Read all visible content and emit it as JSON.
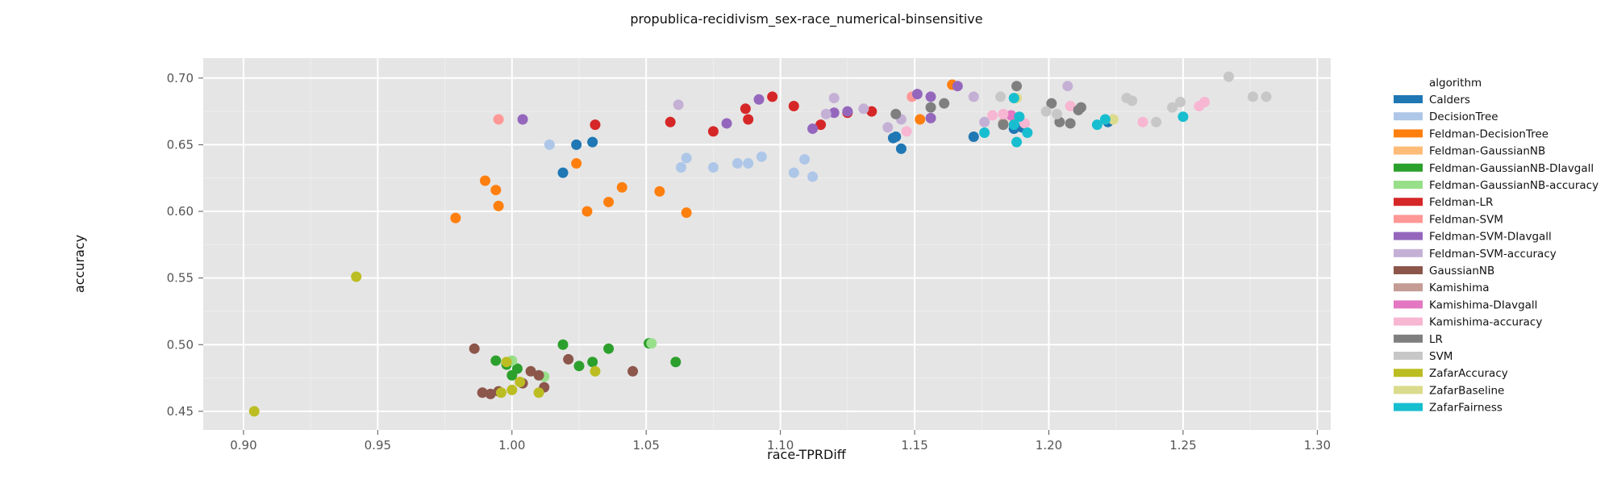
{
  "chart_data": {
    "type": "scatter",
    "title": "propublica-recidivism_sex-race_numerical-binsensitive",
    "xlabel": "race-TPRDiff",
    "ylabel": "accuracy",
    "xlim": [
      0.885,
      1.305
    ],
    "ylim": [
      0.436,
      0.715
    ],
    "xticks": [
      "0.90",
      "0.95",
      "1.00",
      "1.05",
      "1.10",
      "1.15",
      "1.20",
      "1.25",
      "1.30"
    ],
    "yticks": [
      "0.45",
      "0.50",
      "0.55",
      "0.60",
      "0.65",
      "0.70"
    ],
    "grid": true,
    "legend": {
      "title": "algorithm",
      "position": "right"
    },
    "series": [
      {
        "name": "Calders",
        "color": "#1f77b4",
        "points": [
          [
            1.019,
            0.629
          ],
          [
            1.024,
            0.65
          ],
          [
            1.03,
            0.652
          ],
          [
            1.142,
            0.655
          ],
          [
            1.143,
            0.656
          ],
          [
            1.145,
            0.647
          ],
          [
            1.172,
            0.656
          ],
          [
            1.187,
            0.662
          ],
          [
            1.19,
            0.663
          ],
          [
            1.222,
            0.667
          ]
        ]
      },
      {
        "name": "DecisionTree",
        "color": "#aec7e8",
        "points": [
          [
            1.014,
            0.65
          ],
          [
            1.063,
            0.633
          ],
          [
            1.065,
            0.64
          ],
          [
            1.075,
            0.633
          ],
          [
            1.084,
            0.636
          ],
          [
            1.088,
            0.636
          ],
          [
            1.093,
            0.641
          ],
          [
            1.105,
            0.629
          ],
          [
            1.109,
            0.639
          ],
          [
            1.112,
            0.626
          ]
        ]
      },
      {
        "name": "Feldman-DecisionTree",
        "color": "#ff7f0e",
        "points": [
          [
            0.979,
            0.595
          ],
          [
            0.99,
            0.623
          ],
          [
            0.994,
            0.616
          ],
          [
            0.995,
            0.604
          ],
          [
            1.024,
            0.636
          ],
          [
            1.028,
            0.6
          ],
          [
            1.036,
            0.607
          ],
          [
            1.041,
            0.618
          ],
          [
            1.055,
            0.615
          ],
          [
            1.065,
            0.599
          ],
          [
            1.152,
            0.669
          ],
          [
            1.164,
            0.695
          ]
        ]
      },
      {
        "name": "Feldman-GaussianNB",
        "color": "#ffbb78",
        "points": [
          [
            1.187,
            0.67
          ]
        ]
      },
      {
        "name": "Feldman-GaussianNB-DIavgall",
        "color": "#2ca02c",
        "points": [
          [
            0.994,
            0.488
          ],
          [
            0.998,
            0.485
          ],
          [
            1.0,
            0.477
          ],
          [
            1.002,
            0.482
          ],
          [
            1.019,
            0.5
          ],
          [
            1.025,
            0.484
          ],
          [
            1.03,
            0.487
          ],
          [
            1.036,
            0.497
          ],
          [
            1.051,
            0.501
          ],
          [
            1.061,
            0.487
          ]
        ]
      },
      {
        "name": "Feldman-GaussianNB-accuracy",
        "color": "#98df8a",
        "points": [
          [
            1.0,
            0.488
          ],
          [
            1.012,
            0.476
          ],
          [
            1.052,
            0.501
          ]
        ]
      },
      {
        "name": "Feldman-LR",
        "color": "#d62728",
        "points": [
          [
            1.031,
            0.665
          ],
          [
            1.059,
            0.667
          ],
          [
            1.075,
            0.66
          ],
          [
            1.087,
            0.677
          ],
          [
            1.088,
            0.669
          ],
          [
            1.097,
            0.686
          ],
          [
            1.105,
            0.679
          ],
          [
            1.115,
            0.665
          ],
          [
            1.125,
            0.674
          ],
          [
            1.134,
            0.675
          ]
        ]
      },
      {
        "name": "Feldman-SVM",
        "color": "#ff9896",
        "points": [
          [
            0.995,
            0.669
          ],
          [
            1.149,
            0.686
          ]
        ]
      },
      {
        "name": "Feldman-SVM-DIavgall",
        "color": "#9467bd",
        "points": [
          [
            1.004,
            0.669
          ],
          [
            1.08,
            0.666
          ],
          [
            1.092,
            0.684
          ],
          [
            1.112,
            0.662
          ],
          [
            1.12,
            0.674
          ],
          [
            1.125,
            0.675
          ],
          [
            1.151,
            0.688
          ],
          [
            1.156,
            0.686
          ],
          [
            1.156,
            0.67
          ],
          [
            1.166,
            0.694
          ]
        ]
      },
      {
        "name": "Feldman-SVM-accuracy",
        "color": "#c5b0d5",
        "points": [
          [
            1.062,
            0.68
          ],
          [
            1.117,
            0.673
          ],
          [
            1.12,
            0.685
          ],
          [
            1.131,
            0.677
          ],
          [
            1.14,
            0.663
          ],
          [
            1.145,
            0.669
          ],
          [
            1.172,
            0.686
          ],
          [
            1.176,
            0.667
          ],
          [
            1.207,
            0.694
          ]
        ]
      },
      {
        "name": "GaussianNB",
        "color": "#8c564b",
        "points": [
          [
            0.986,
            0.497
          ],
          [
            0.989,
            0.464
          ],
          [
            0.992,
            0.463
          ],
          [
            0.995,
            0.465
          ],
          [
            1.004,
            0.471
          ],
          [
            1.007,
            0.48
          ],
          [
            1.01,
            0.477
          ],
          [
            1.012,
            0.468
          ],
          [
            1.021,
            0.489
          ],
          [
            1.045,
            0.48
          ]
        ]
      },
      {
        "name": "Kamishima",
        "color": "#c49c94",
        "points": [
          [
            1.183,
            0.666
          ]
        ]
      },
      {
        "name": "Kamishima-DIavgall",
        "color": "#e377c2",
        "points": [
          [
            1.186,
            0.672
          ]
        ]
      },
      {
        "name": "Kamishima-accuracy",
        "color": "#f7b6d2",
        "points": [
          [
            1.147,
            0.66
          ],
          [
            1.179,
            0.672
          ],
          [
            1.183,
            0.673
          ],
          [
            1.191,
            0.666
          ],
          [
            1.208,
            0.679
          ],
          [
            1.235,
            0.667
          ],
          [
            1.256,
            0.679
          ],
          [
            1.258,
            0.682
          ]
        ]
      },
      {
        "name": "LR",
        "color": "#7f7f7f",
        "points": [
          [
            1.143,
            0.673
          ],
          [
            1.156,
            0.678
          ],
          [
            1.161,
            0.681
          ],
          [
            1.183,
            0.665
          ],
          [
            1.188,
            0.694
          ],
          [
            1.201,
            0.681
          ],
          [
            1.204,
            0.667
          ],
          [
            1.208,
            0.666
          ],
          [
            1.211,
            0.676
          ],
          [
            1.212,
            0.678
          ]
        ]
      },
      {
        "name": "SVM",
        "color": "#c7c7c7",
        "points": [
          [
            1.182,
            0.686
          ],
          [
            1.199,
            0.675
          ],
          [
            1.203,
            0.673
          ],
          [
            1.229,
            0.685
          ],
          [
            1.231,
            0.683
          ],
          [
            1.24,
            0.667
          ],
          [
            1.246,
            0.678
          ],
          [
            1.249,
            0.682
          ],
          [
            1.267,
            0.701
          ],
          [
            1.276,
            0.686
          ],
          [
            1.281,
            0.686
          ]
        ]
      },
      {
        "name": "ZafarAccuracy",
        "color": "#bcbd22",
        "points": [
          [
            0.904,
            0.45
          ],
          [
            0.942,
            0.551
          ],
          [
            0.996,
            0.464
          ],
          [
            0.998,
            0.487
          ],
          [
            1.0,
            0.466
          ],
          [
            1.003,
            0.472
          ],
          [
            1.01,
            0.464
          ],
          [
            1.031,
            0.48
          ]
        ]
      },
      {
        "name": "ZafarBaseline",
        "color": "#dbdb8d",
        "points": [
          [
            1.188,
            0.685
          ],
          [
            1.224,
            0.669
          ]
        ]
      },
      {
        "name": "ZafarFairness",
        "color": "#17becf",
        "points": [
          [
            1.176,
            0.659
          ],
          [
            1.187,
            0.685
          ],
          [
            1.187,
            0.665
          ],
          [
            1.188,
            0.652
          ],
          [
            1.189,
            0.671
          ],
          [
            1.192,
            0.659
          ],
          [
            1.218,
            0.665
          ],
          [
            1.221,
            0.669
          ],
          [
            1.25,
            0.671
          ]
        ]
      }
    ]
  }
}
